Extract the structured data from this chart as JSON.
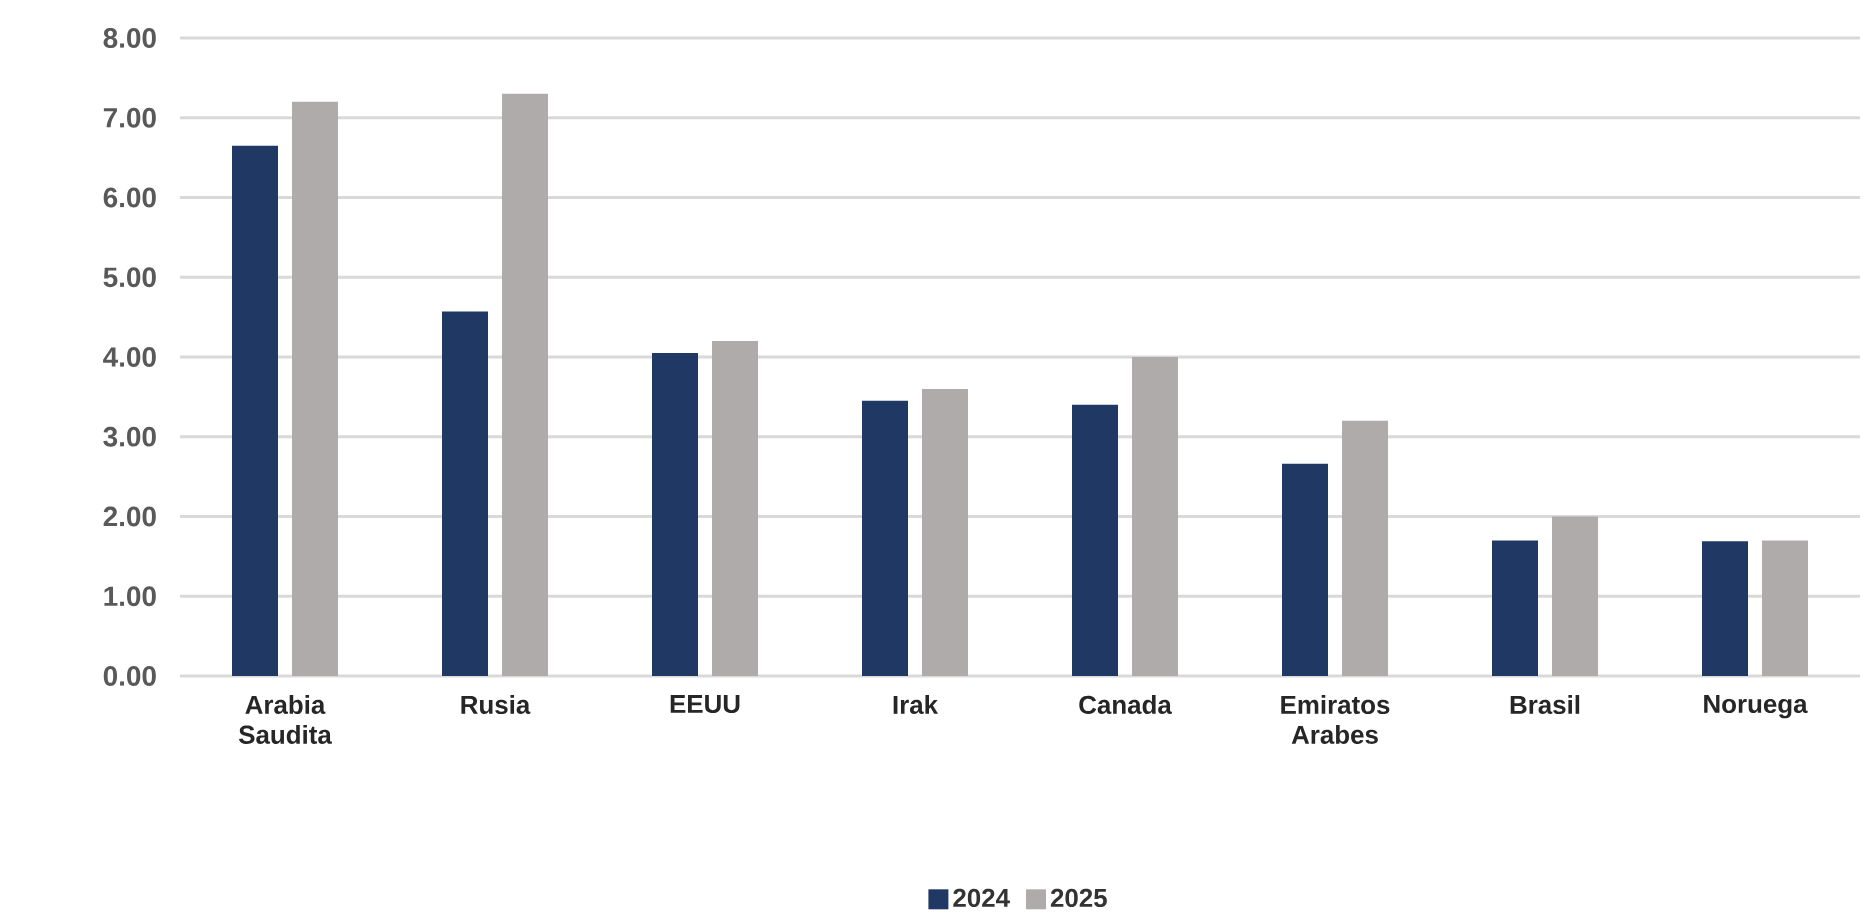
{
  "chart_data": {
    "type": "bar",
    "categories": [
      "Arabia Saudita",
      "Rusia",
      "EEUU",
      "Irak",
      "Canada",
      "Emiratos Arabes",
      "Brasil",
      "Noruega"
    ],
    "series": [
      {
        "name": "2024",
        "color": "#203864",
        "values": [
          6.65,
          4.57,
          4.05,
          3.45,
          3.4,
          2.66,
          1.7,
          1.69
        ]
      },
      {
        "name": "2025",
        "color": "#afabab",
        "values": [
          7.2,
          7.3,
          4.2,
          3.6,
          4.0,
          3.2,
          2.0,
          1.7
        ]
      }
    ],
    "ylim": [
      0,
      8
    ],
    "yticks": [
      {
        "value": 0,
        "label": "0.00"
      },
      {
        "value": 1,
        "label": "1.00"
      },
      {
        "value": 2,
        "label": "2.00"
      },
      {
        "value": 3,
        "label": "3.00"
      },
      {
        "value": 4,
        "label": "4.00"
      },
      {
        "value": 5,
        "label": "5.00"
      },
      {
        "value": 6,
        "label": "6.00"
      },
      {
        "value": 7,
        "label": "7.00"
      },
      {
        "value": 8,
        "label": "8.00"
      }
    ],
    "grid": "y",
    "legend": "bottom"
  }
}
